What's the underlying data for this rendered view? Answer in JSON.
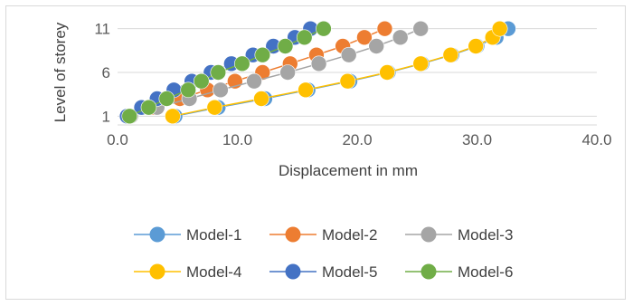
{
  "chart_data": {
    "type": "scatter",
    "xlabel": "Displacement in mm",
    "ylabel": "Level of storey",
    "xlim": [
      0,
      40
    ],
    "ylim": [
      0,
      12
    ],
    "xticks": [
      "0.0",
      "10.0",
      "20.0",
      "30.0",
      "40.0"
    ],
    "yticks": [
      "1",
      "6",
      "11"
    ],
    "grid": "horizontal",
    "legend_position": "bottom",
    "series": [
      {
        "name": "Model-1",
        "color": "#5B9BD5",
        "points": [
          [
            4.8,
            1
          ],
          [
            8.4,
            2
          ],
          [
            12.3,
            3
          ],
          [
            15.9,
            4
          ],
          [
            19.4,
            5
          ],
          [
            22.6,
            6
          ],
          [
            25.4,
            7
          ],
          [
            27.9,
            8
          ],
          [
            30.0,
            9
          ],
          [
            31.6,
            10
          ],
          [
            32.6,
            11
          ]
        ]
      },
      {
        "name": "Model-2",
        "color": "#ED7D31",
        "points": [
          [
            1.0,
            1
          ],
          [
            3.0,
            2
          ],
          [
            5.2,
            3
          ],
          [
            7.5,
            4
          ],
          [
            9.8,
            5
          ],
          [
            12.1,
            6
          ],
          [
            14.4,
            7
          ],
          [
            16.6,
            8
          ],
          [
            18.8,
            9
          ],
          [
            20.6,
            10
          ],
          [
            22.3,
            11
          ]
        ]
      },
      {
        "name": "Model-3",
        "color": "#A5A5A5",
        "points": [
          [
            1.1,
            1
          ],
          [
            3.3,
            2
          ],
          [
            6.0,
            3
          ],
          [
            8.6,
            4
          ],
          [
            11.4,
            5
          ],
          [
            14.2,
            6
          ],
          [
            16.8,
            7
          ],
          [
            19.3,
            8
          ],
          [
            21.6,
            9
          ],
          [
            23.6,
            10
          ],
          [
            25.3,
            11
          ]
        ]
      },
      {
        "name": "Model-4",
        "color": "#FFC000",
        "points": [
          [
            4.6,
            1
          ],
          [
            8.1,
            2
          ],
          [
            12.0,
            3
          ],
          [
            15.7,
            4
          ],
          [
            19.2,
            5
          ],
          [
            22.5,
            6
          ],
          [
            25.3,
            7
          ],
          [
            27.8,
            8
          ],
          [
            29.9,
            9
          ],
          [
            31.3,
            10
          ],
          [
            31.9,
            11
          ]
        ]
      },
      {
        "name": "Model-5",
        "color": "#4472C4",
        "points": [
          [
            0.8,
            1
          ],
          [
            2.0,
            2
          ],
          [
            3.3,
            3
          ],
          [
            4.7,
            4
          ],
          [
            6.2,
            5
          ],
          [
            7.8,
            6
          ],
          [
            9.5,
            7
          ],
          [
            11.3,
            8
          ],
          [
            13.0,
            9
          ],
          [
            14.8,
            10
          ],
          [
            16.1,
            11
          ]
        ]
      },
      {
        "name": "Model-6",
        "color": "#70AD47",
        "points": [
          [
            1.0,
            1
          ],
          [
            2.6,
            2
          ],
          [
            4.1,
            3
          ],
          [
            5.9,
            4
          ],
          [
            7.0,
            5
          ],
          [
            8.4,
            6
          ],
          [
            10.4,
            7
          ],
          [
            12.1,
            8
          ],
          [
            14.0,
            9
          ],
          [
            15.6,
            10
          ],
          [
            17.2,
            11
          ]
        ]
      }
    ]
  }
}
